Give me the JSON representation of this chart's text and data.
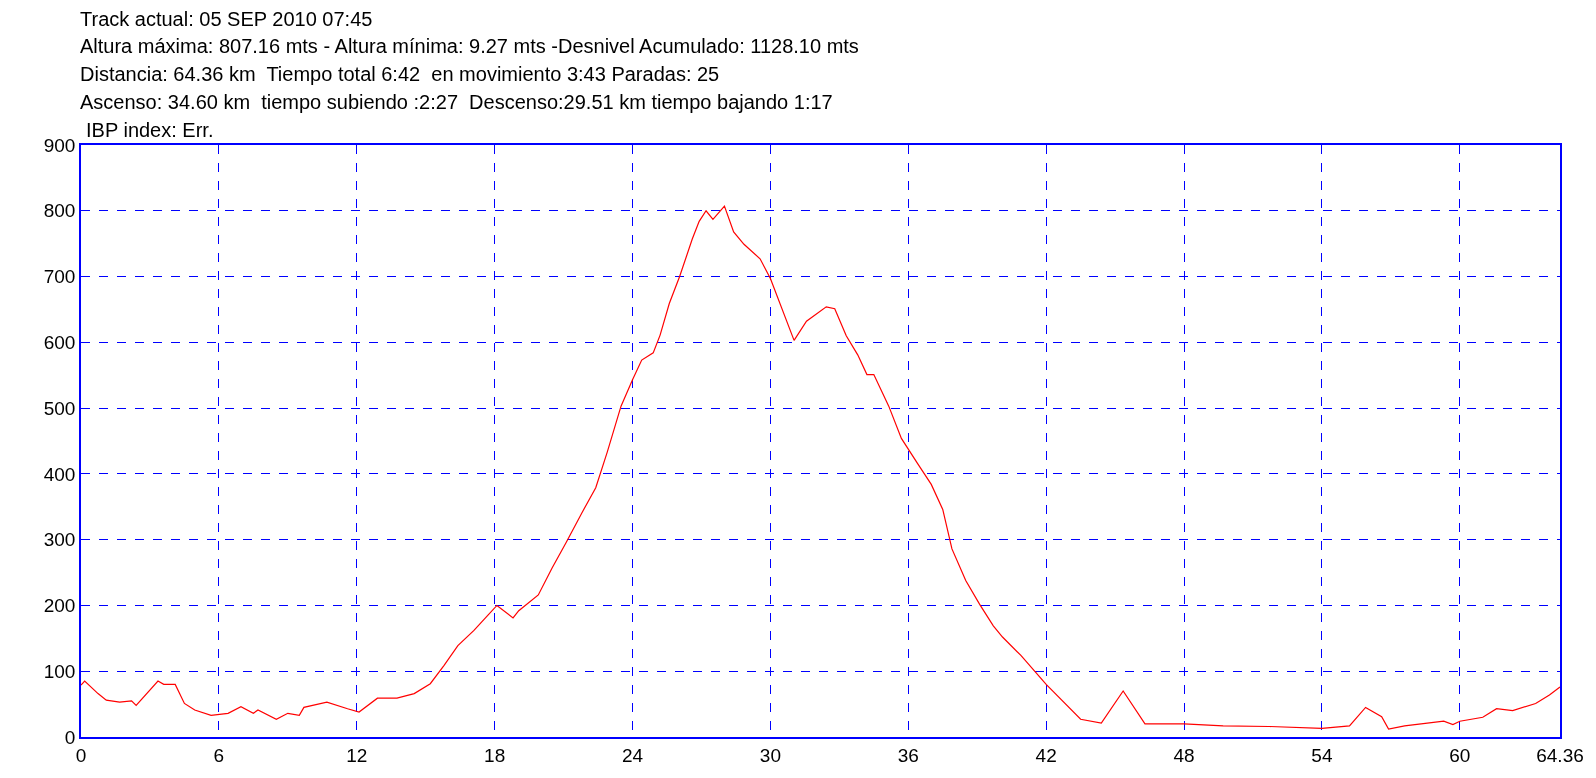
{
  "chart_data": {
    "type": "line",
    "title": "Track actual: 05 SEP 2010 07:45",
    "annotations": [
      "Altura máxima: 807.16 mts - Altura mínima: 9.27 mts -Desnivel Acumulado: 1128.10 mts",
      "Distancia: 64.36 km  Tiempo total 6:42  en movimiento 3:43 Paradas: 25",
      "Ascenso: 34.60 km  tiempo subiendo :2:27  Descenso:29.51 km tiempo bajando 1:17",
      "IBP index: Err."
    ],
    "x": [
      0,
      0.16,
      0.74,
      1.1,
      1.68,
      2.2,
      2.4,
      3.35,
      3.6,
      4.1,
      4.5,
      4.95,
      5.66,
      6.4,
      6.96,
      7.5,
      7.7,
      8.5,
      9.0,
      9.5,
      9.7,
      10.7,
      11.6,
      12.1,
      12.9,
      13.75,
      14.5,
      15.2,
      15.8,
      16.4,
      17.1,
      17.7,
      18.1,
      18.8,
      19.05,
      19.9,
      20.5,
      21.1,
      21.8,
      22.4,
      22.9,
      23.5,
      24,
      24.4,
      24.9,
      25.2,
      25.6,
      26.05,
      26.6,
      26.9,
      27.2,
      27.5,
      28.0,
      28.4,
      28.85,
      29.55,
      30,
      31.03,
      31.57,
      32.43,
      32.8,
      33.3,
      33.8,
      34.2,
      34.5,
      35.15,
      35.7,
      36.4,
      37.0,
      37.5,
      37.9,
      38.5,
      39.1,
      39.7,
      40.1,
      40.9,
      42,
      43.5,
      44.4,
      45.35,
      46.3,
      48,
      49.7,
      51.7,
      54,
      55.2,
      55.9,
      56.6,
      56.9,
      57.6,
      59.3,
      59.7,
      60,
      61,
      61.6,
      62.3,
      63.3,
      63.9,
      64.36
    ],
    "series": [
      {
        "color": "#ff0000",
        "values": [
          79,
          85,
          66,
          56,
          53,
          55,
          48,
          85,
          80,
          80,
          51,
          41,
          33,
          36,
          46,
          36,
          41,
          27,
          36,
          33,
          45,
          53,
          43,
          38,
          59,
          59,
          66,
          81,
          109,
          139,
          162,
          185,
          200,
          181,
          192,
          216,
          257,
          295,
          341,
          379,
          433,
          503,
          543,
          573,
          584,
          611,
          659,
          700,
          757,
          784,
          800,
          787,
          807,
          768,
          749,
          727,
          697,
          603,
          632,
          654,
          651,
          610,
          581,
          551,
          551,
          503,
          454,
          416,
          384,
          346,
          286,
          238,
          202,
          169,
          152,
          124,
          80,
          27,
          21,
          70,
          20,
          20,
          17,
          16,
          13,
          17,
          45,
          31,
          12,
          17,
          24,
          19,
          24,
          30,
          43,
          40,
          51,
          64,
          76
        ]
      }
    ],
    "xlim": [
      0,
      64.36
    ],
    "xticks": [
      0,
      6,
      12,
      18,
      24,
      30,
      36,
      42,
      48,
      54,
      60,
      64.36
    ],
    "ylim": [
      0,
      900
    ],
    "yticks": [
      0,
      100,
      200,
      300,
      400,
      500,
      600,
      700,
      800,
      900
    ],
    "grid": true,
    "line_style": "solid"
  }
}
